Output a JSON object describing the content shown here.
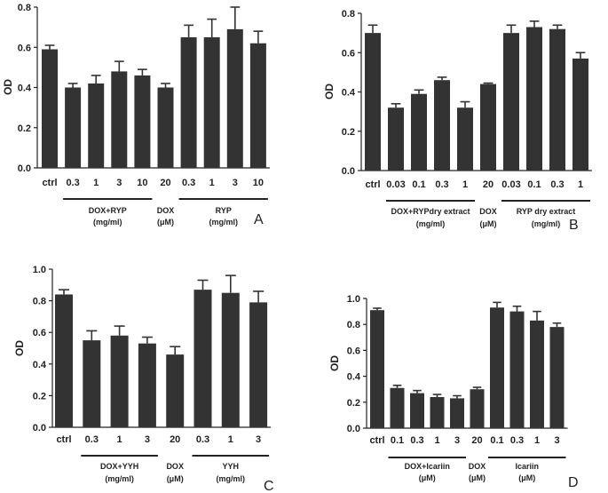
{
  "chart_data": [
    {
      "panel_label": "A",
      "type": "bar",
      "ylabel": "OD",
      "ylim": [
        0,
        0.8
      ],
      "yticks": [
        "0.0",
        "0.2",
        "0.4",
        "0.6",
        "0.8"
      ],
      "categories": [
        "ctrl",
        "0.3",
        "1",
        "3",
        "10",
        "20",
        "0.3",
        "1",
        "3",
        "10"
      ],
      "values": [
        0.59,
        0.4,
        0.42,
        0.48,
        0.46,
        0.4,
        0.65,
        0.65,
        0.69,
        0.62
      ],
      "errors": [
        0.02,
        0.02,
        0.04,
        0.05,
        0.03,
        0.02,
        0.06,
        0.09,
        0.11,
        0.06
      ],
      "bar_color": "#333333",
      "groups": [
        {
          "label": "DOX+RYP",
          "sublabel": "(mg/ml)",
          "from": 1,
          "to": 4
        },
        {
          "label": "DOX",
          "sublabel": "(μM)",
          "from": 5,
          "to": 5
        },
        {
          "label": "RYP",
          "sublabel": "(mg/ml)",
          "from": 6,
          "to": 9
        }
      ]
    },
    {
      "panel_label": "B",
      "type": "bar",
      "ylabel": "OD",
      "ylim": [
        0,
        0.8
      ],
      "yticks": [
        "0.0",
        "0.2",
        "0.4",
        "0.6",
        "0.8"
      ],
      "categories": [
        "ctrl",
        "0.03",
        "0.1",
        "0.3",
        "1",
        "20",
        "0.03",
        "0.1",
        "0.3",
        "1"
      ],
      "values": [
        0.7,
        0.32,
        0.39,
        0.46,
        0.32,
        0.44,
        0.7,
        0.73,
        0.72,
        0.57
      ],
      "errors": [
        0.04,
        0.02,
        0.02,
        0.015,
        0.03,
        0.005,
        0.04,
        0.03,
        0.02,
        0.03
      ],
      "bar_color": "#333333",
      "groups": [
        {
          "label": "DOX+RYPdry extract",
          "sublabel": "(mg/ml)",
          "from": 1,
          "to": 4
        },
        {
          "label": "DOX",
          "sublabel": "(μM)",
          "from": 5,
          "to": 5
        },
        {
          "label": "RYP dry extract",
          "sublabel": "(mg/ml)",
          "from": 6,
          "to": 9
        }
      ]
    },
    {
      "panel_label": "C",
      "type": "bar",
      "ylabel": "OD",
      "ylim": [
        0,
        1.0
      ],
      "yticks": [
        "0.0",
        "0.2",
        "0.4",
        "0.6",
        "0.8",
        "1.0"
      ],
      "categories": [
        "ctrl",
        "0.3",
        "1",
        "3",
        "20",
        "0.3",
        "1",
        "3"
      ],
      "values": [
        0.84,
        0.55,
        0.58,
        0.53,
        0.46,
        0.87,
        0.85,
        0.79
      ],
      "errors": [
        0.03,
        0.06,
        0.06,
        0.04,
        0.05,
        0.06,
        0.11,
        0.07
      ],
      "bar_color": "#333333",
      "groups": [
        {
          "label": "DOX+YYH",
          "sublabel": "(mg/ml)",
          "from": 1,
          "to": 3
        },
        {
          "label": "DOX",
          "sublabel": "(μM)",
          "from": 4,
          "to": 4
        },
        {
          "label": "YYH",
          "sublabel": "(mg/ml)",
          "from": 5,
          "to": 7
        }
      ]
    },
    {
      "panel_label": "D",
      "type": "bar",
      "ylabel": "OD",
      "ylim": [
        0,
        1.0
      ],
      "yticks": [
        "0.0",
        "0.2",
        "0.4",
        "0.6",
        "0.8",
        "1.0"
      ],
      "categories": [
        "ctrl",
        "0.1",
        "0.3",
        "1",
        "3",
        "20",
        "0.1",
        "0.3",
        "1",
        "3"
      ],
      "values": [
        0.91,
        0.31,
        0.27,
        0.24,
        0.23,
        0.3,
        0.93,
        0.9,
        0.83,
        0.78
      ],
      "errors": [
        0.015,
        0.02,
        0.02,
        0.02,
        0.02,
        0.015,
        0.04,
        0.04,
        0.07,
        0.03
      ],
      "bar_color": "#333333",
      "groups": [
        {
          "label": "DOX+Icariin",
          "sublabel": "(μM)",
          "from": 1,
          "to": 4
        },
        {
          "label": "DOX",
          "sublabel": "(μM)",
          "from": 5,
          "to": 5
        },
        {
          "label": "Icariin",
          "sublabel": "(μM)",
          "from": 6,
          "to": 9
        }
      ]
    }
  ]
}
